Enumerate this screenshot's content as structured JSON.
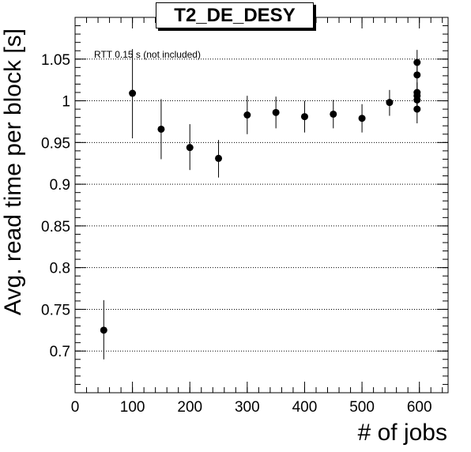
{
  "chart_data": {
    "type": "scatter",
    "title": "T2_DE_DESY",
    "xlabel": "# of jobs",
    "ylabel": "Avg. read time per block [s]",
    "annotation": "RTT 0.15 s (not included)",
    "xlim": [
      0,
      650
    ],
    "ylim": [
      0.65,
      1.1
    ],
    "x_ticks": [
      0,
      100,
      200,
      300,
      400,
      500,
      600
    ],
    "x_tick_labels": [
      "0",
      "100",
      "200",
      "300",
      "400",
      "500",
      "600"
    ],
    "y_ticks": [
      0.7,
      0.75,
      0.8,
      0.85,
      0.9,
      0.95,
      1.0,
      1.05
    ],
    "y_tick_labels": [
      "0.7",
      "0.75",
      "0.8",
      "0.85",
      "0.9",
      "0.95",
      "1",
      "1.05"
    ],
    "grid": "horizontal dotted",
    "marker_color": "#000000",
    "points": [
      {
        "x": 50,
        "y": 0.725,
        "yerr_low": 0.69,
        "yerr_high": 0.761
      },
      {
        "x": 100,
        "y": 1.009,
        "yerr_low": 0.955,
        "yerr_high": 1.062
      },
      {
        "x": 150,
        "y": 0.966,
        "yerr_low": 0.93,
        "yerr_high": 1.002
      },
      {
        "x": 200,
        "y": 0.944,
        "yerr_low": 0.917,
        "yerr_high": 0.972
      },
      {
        "x": 250,
        "y": 0.931,
        "yerr_low": 0.908,
        "yerr_high": 0.953
      },
      {
        "x": 300,
        "y": 0.983,
        "yerr_low": 0.96,
        "yerr_high": 1.006
      },
      {
        "x": 350,
        "y": 0.986,
        "yerr_low": 0.967,
        "yerr_high": 1.005
      },
      {
        "x": 400,
        "y": 0.981,
        "yerr_low": 0.962,
        "yerr_high": 1.0
      },
      {
        "x": 450,
        "y": 0.984,
        "yerr_low": 0.967,
        "yerr_high": 1.001
      },
      {
        "x": 500,
        "y": 0.979,
        "yerr_low": 0.962,
        "yerr_high": 0.996
      },
      {
        "x": 548,
        "y": 0.998,
        "yerr_low": 0.982,
        "yerr_high": 1.013
      },
      {
        "x": 596,
        "y": 1.046,
        "yerr_low": 1.032,
        "yerr_high": 1.061
      },
      {
        "x": 596,
        "y": 1.031,
        "yerr_low": 1.018,
        "yerr_high": 1.045
      },
      {
        "x": 596,
        "y": 1.01,
        "yerr_low": 0.998,
        "yerr_high": 1.022
      },
      {
        "x": 596,
        "y": 1.006,
        "yerr_low": 0.994,
        "yerr_high": 1.018
      },
      {
        "x": 596,
        "y": 1.001,
        "yerr_low": 0.989,
        "yerr_high": 1.013
      },
      {
        "x": 596,
        "y": 0.99,
        "yerr_low": 0.973,
        "yerr_high": 1.006
      }
    ]
  }
}
